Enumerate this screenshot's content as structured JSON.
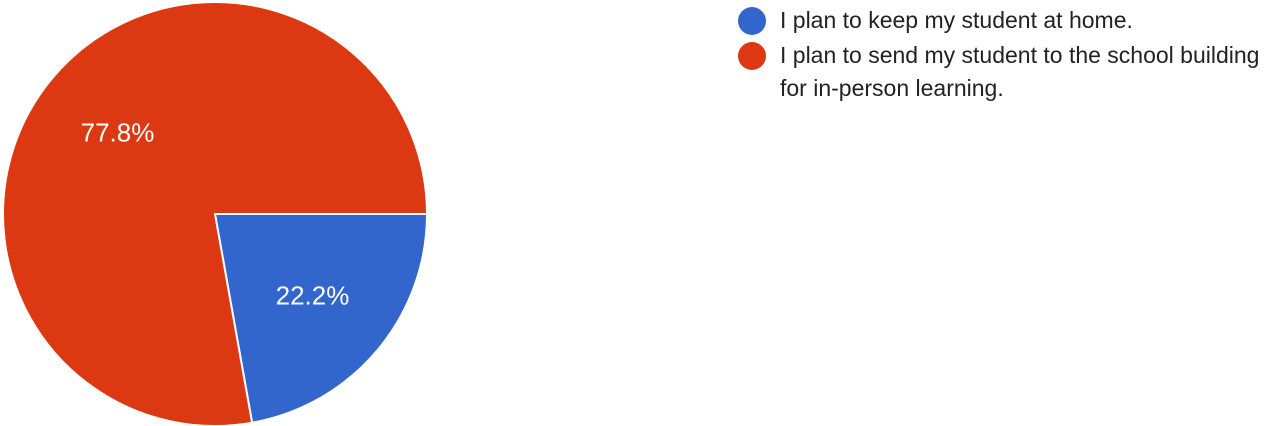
{
  "chart_data": {
    "type": "pie",
    "title": "",
    "slices": [
      {
        "label": "I plan to keep my student at home.",
        "value": 22.2,
        "value_label": "22.2%",
        "color": "#3366cc"
      },
      {
        "label": "I plan to send my student to the school building for in-person learning.",
        "value": 77.8,
        "value_label": "77.8%",
        "color": "#dc3912"
      }
    ],
    "legend_position": "top-right"
  }
}
